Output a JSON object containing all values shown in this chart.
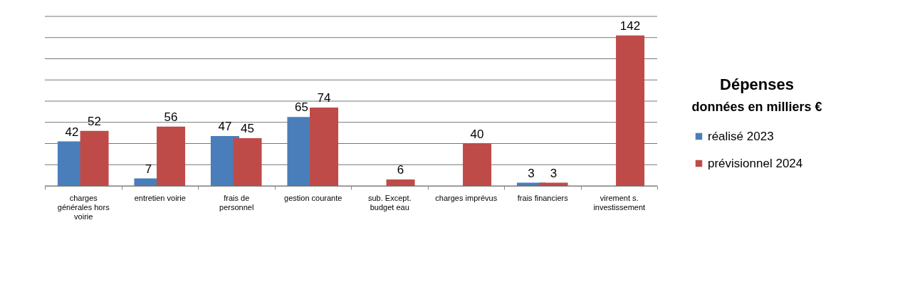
{
  "chart_data": {
    "type": "bar",
    "title": "Dépenses",
    "subtitle": "données en milliers €",
    "categories": [
      "charges générales hors voirie",
      "entretien voirie",
      "frais de personnel",
      "gestion courante",
      "sub. Except. budget eau",
      "charges imprévus",
      "frais financiers",
      "virement s. investissement"
    ],
    "series": [
      {
        "name": "réalisé 2023",
        "color": "#4a7ebb",
        "values": [
          42,
          7,
          47,
          65,
          null,
          null,
          3,
          null
        ]
      },
      {
        "name": "prévisionnel 2024",
        "color": "#be4b48",
        "values": [
          52,
          56,
          45,
          74,
          6,
          40,
          3,
          142
        ]
      }
    ],
    "ylim": [
      0,
      160
    ],
    "yticks": [
      {
        "value": 0,
        "label": null
      },
      {
        "value": 20,
        "label": null
      },
      {
        "value": 40,
        "label": null
      },
      {
        "value": 60,
        "label": null
      },
      {
        "value": 80,
        "label": null
      },
      {
        "value": 100,
        "label": null
      },
      {
        "value": 120,
        "label": null
      },
      {
        "value": 140,
        "label": null
      },
      {
        "value": 160,
        "label": null
      }
    ],
    "grid": "y",
    "legend": "right",
    "data_labels": true,
    "tick_labels": "x"
  }
}
